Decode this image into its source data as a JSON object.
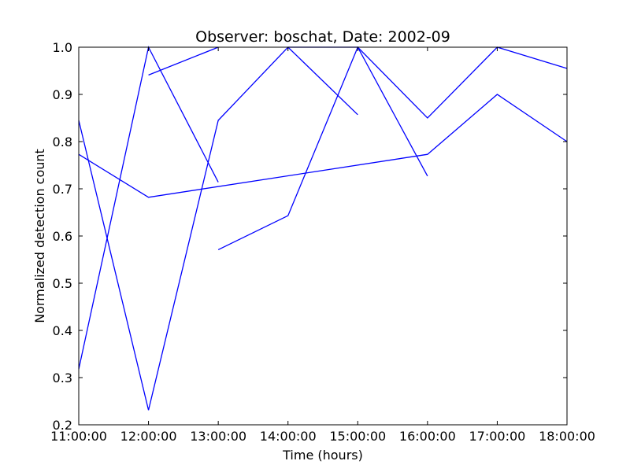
{
  "chart_data": {
    "type": "line",
    "title": "Observer: boschat, Date: 2002-09",
    "xlabel": "Time (hours)",
    "ylabel": "Normalized detection count",
    "xlim": [
      "11:00:00",
      "18:00:00"
    ],
    "ylim": [
      0.2,
      1.0
    ],
    "x_ticks": [
      "11:00:00",
      "12:00:00",
      "13:00:00",
      "14:00:00",
      "15:00:00",
      "16:00:00",
      "17:00:00",
      "18:00:00"
    ],
    "y_ticks": [
      "0.2",
      "0.3",
      "0.4",
      "0.5",
      "0.6",
      "0.7",
      "0.8",
      "0.9",
      "1.0"
    ],
    "grid": false,
    "series_color": "#0000ff",
    "series": [
      {
        "x": [
          "11:00:00",
          "12:00:00",
          "13:00:00",
          "14:00:00",
          "15:00:00",
          "16:00:00"
        ],
        "values": [
          0.845,
          0.231,
          0.845,
          1.0,
          1.0,
          0.727
        ]
      },
      {
        "x": [
          "11:00:00",
          "12:00:00",
          "13:00:00"
        ],
        "values": [
          0.318,
          1.0,
          0.714
        ]
      },
      {
        "x": [
          "11:00:00",
          "12:00:00",
          "16:00:00",
          "17:00:00",
          "18:00:00"
        ],
        "values": [
          0.773,
          0.682,
          0.773,
          0.9,
          0.8
        ]
      },
      {
        "x": [
          "12:00:00",
          "13:00:00"
        ],
        "values": [
          0.941,
          1.0
        ]
      },
      {
        "x": [
          "13:00:00",
          "14:00:00",
          "15:00:00",
          "16:00:00",
          "17:00:00",
          "18:00:00"
        ],
        "values": [
          0.571,
          0.643,
          1.0,
          0.85,
          1.0,
          0.955
        ]
      },
      {
        "x": [
          "14:00:00",
          "15:00:00"
        ],
        "values": [
          1.0,
          0.857
        ]
      }
    ]
  }
}
